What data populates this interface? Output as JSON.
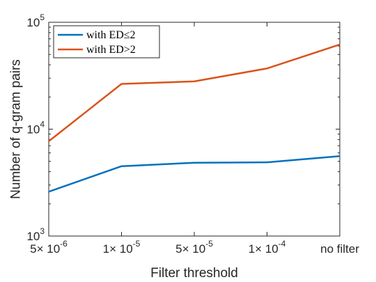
{
  "chart_data": {
    "type": "line",
    "x_scale": "categorical",
    "y_scale": "log",
    "categories": [
      "5×10^-6",
      "1×10^-5",
      "5×10^-5",
      "1×10^-4",
      "no filter"
    ],
    "x_tick_labels": [
      {
        "base": "5× 10",
        "exp": "-6"
      },
      {
        "base": "1× 10",
        "exp": "-5"
      },
      {
        "base": "5× 10",
        "exp": "-5"
      },
      {
        "base": "1× 10",
        "exp": "-4"
      },
      {
        "base": "no filter",
        "exp": ""
      }
    ],
    "y_ticks": [
      1000,
      10000,
      100000
    ],
    "y_tick_labels": [
      {
        "base": "10",
        "exp": "3"
      },
      {
        "base": "10",
        "exp": "4"
      },
      {
        "base": "10",
        "exp": "5"
      }
    ],
    "ylim": [
      1000,
      100000
    ],
    "xlabel": "Filter threshold",
    "ylabel": "Number of q-gram pairs",
    "legend_position": "top-left",
    "grid": false,
    "series": [
      {
        "name": "with ED≤2",
        "color": "#0072BD",
        "values": [
          2600,
          4500,
          4850,
          4900,
          5600
        ]
      },
      {
        "name": "with ED>2",
        "color": "#D95319",
        "values": [
          7700,
          26500,
          28000,
          37000,
          62000
        ]
      }
    ]
  }
}
